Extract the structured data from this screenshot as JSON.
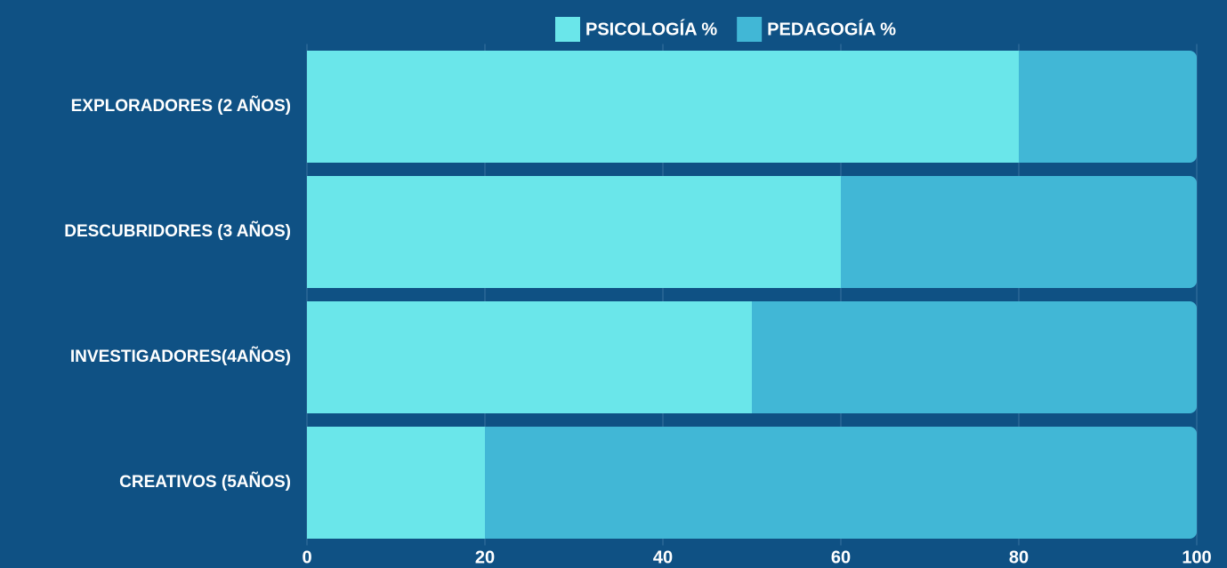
{
  "chart_data": {
    "type": "stacked-hbar",
    "categories": [
      "EXPLORADORES (2 AÑOS)",
      "DESCUBRIDORES (3 AÑOS)",
      "INVESTIGADORES(4AÑOS)",
      "CREATIVOS (5AÑOS)"
    ],
    "series": [
      {
        "name": "PSICOLOGÍA %",
        "color": "#6ae6ea",
        "values": [
          80,
          60,
          50,
          20
        ]
      },
      {
        "name": "PEDAGOGÍA %",
        "color": "#41b7d6",
        "values": [
          20,
          40,
          50,
          80
        ]
      }
    ],
    "xlim": [
      0,
      100
    ],
    "xticks": [
      0,
      20,
      40,
      60,
      80,
      100
    ],
    "grid": true,
    "legend": "top"
  }
}
